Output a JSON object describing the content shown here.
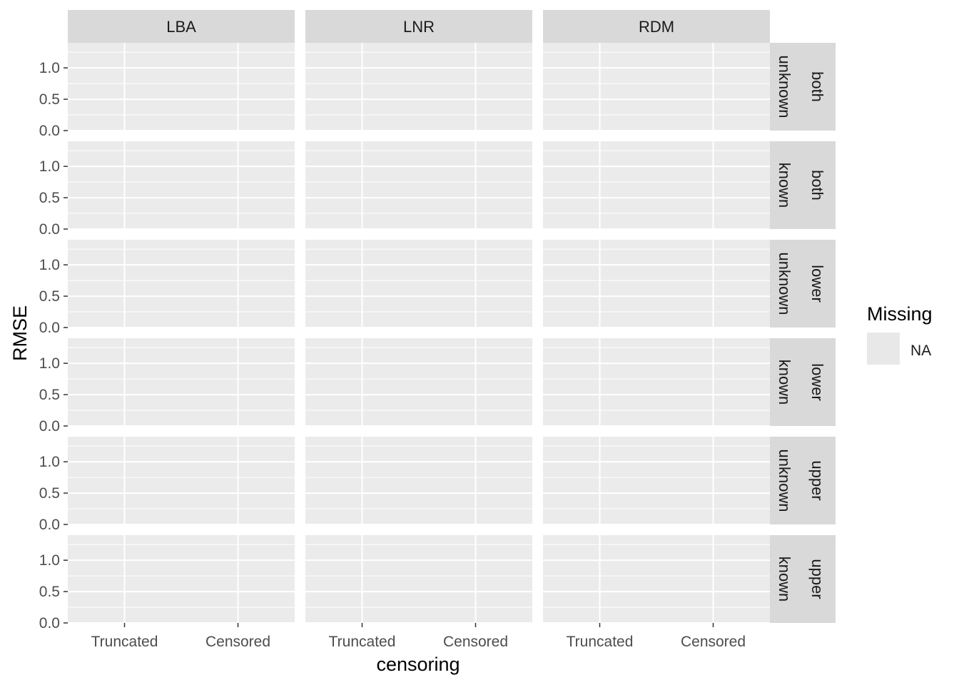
{
  "chart_data": {
    "type": "bar",
    "facet_cols": [
      "LBA",
      "LNR",
      "RDM"
    ],
    "facet_rows": [
      {
        "top": "both",
        "bottom": "unknown"
      },
      {
        "top": "both",
        "bottom": "known"
      },
      {
        "top": "lower",
        "bottom": "unknown"
      },
      {
        "top": "lower",
        "bottom": "known"
      },
      {
        "top": "upper",
        "bottom": "unknown"
      },
      {
        "top": "upper",
        "bottom": "known"
      }
    ],
    "categories": [
      "Truncated",
      "Censored"
    ],
    "xlabel": "censoring",
    "ylabel": "RMSE",
    "ylim": [
      0,
      1.4
    ],
    "yticks": [
      0.0,
      0.5,
      1.0
    ],
    "ytick_labels": [
      "0.0",
      "0.5",
      "1.0"
    ],
    "series": [],
    "legend": {
      "title": "Missing",
      "entries": [
        {
          "label": "NA",
          "color": "#e8e8e8"
        }
      ],
      "position": "right"
    },
    "grid": true,
    "colors": {
      "panel_bg": "#ebebeb",
      "strip_bg": "#d9d9d9",
      "grid_major": "#ffffff",
      "text": "#4d4d4d",
      "strip_text": "#1a1a1a",
      "title_text": "#000000"
    }
  }
}
